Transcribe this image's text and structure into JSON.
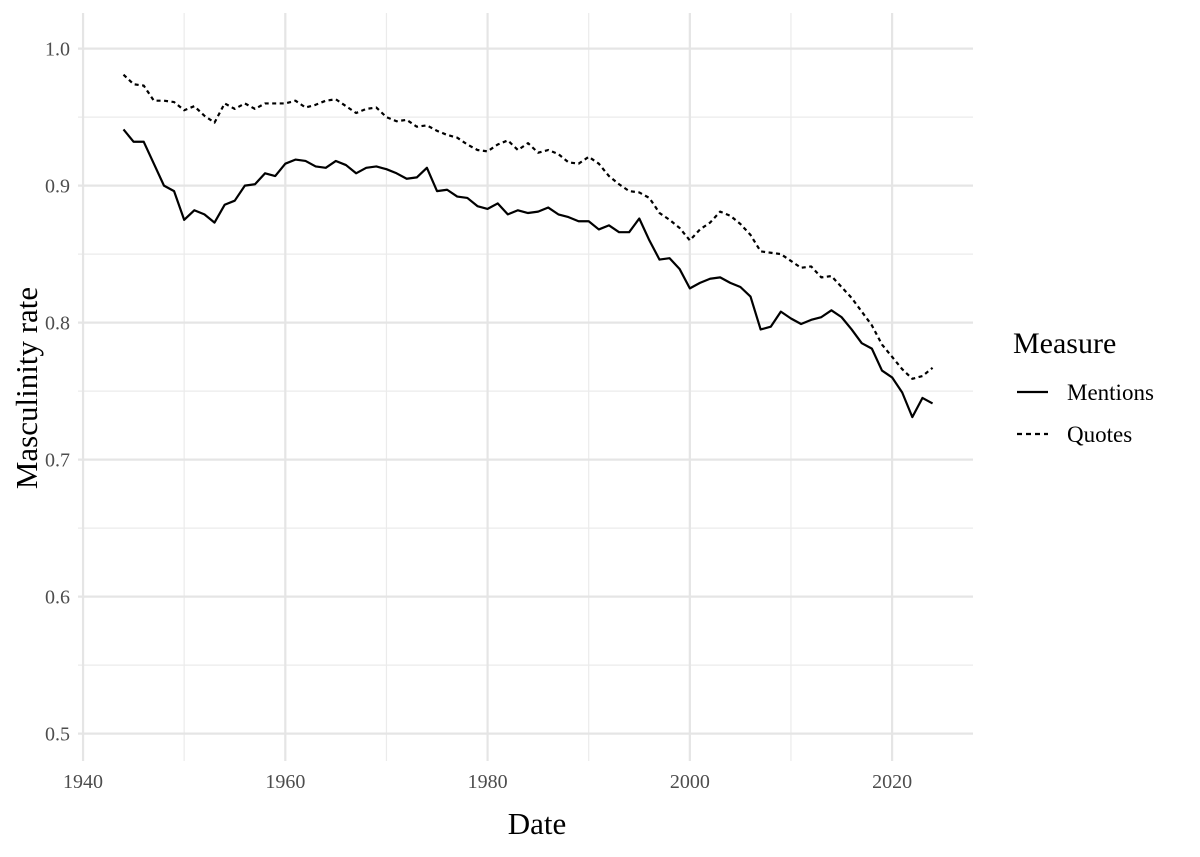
{
  "chart_data": {
    "type": "line",
    "xlabel": "Date",
    "ylabel": "Masculinity rate",
    "xlim": [
      1939.5,
      2028
    ],
    "ylim": [
      0.48,
      1.026
    ],
    "x_ticks": [
      1940,
      1960,
      1980,
      2000,
      2020
    ],
    "y_ticks": [
      0.5,
      0.6,
      0.7,
      0.8,
      0.9,
      1.0
    ],
    "x_tick_labels": [
      "1940",
      "1960",
      "1980",
      "2000",
      "2020"
    ],
    "y_tick_labels": [
      "0.5",
      "0.6",
      "0.7",
      "0.8",
      "0.9",
      "1.0"
    ],
    "grid": true,
    "legend": {
      "title": "Measure",
      "position": "right"
    },
    "x": [
      1944,
      1945,
      1946,
      1947,
      1948,
      1949,
      1950,
      1951,
      1952,
      1953,
      1954,
      1955,
      1956,
      1957,
      1958,
      1959,
      1960,
      1961,
      1962,
      1963,
      1964,
      1965,
      1966,
      1967,
      1968,
      1969,
      1970,
      1971,
      1972,
      1973,
      1974,
      1975,
      1976,
      1977,
      1978,
      1979,
      1980,
      1981,
      1982,
      1983,
      1984,
      1985,
      1986,
      1987,
      1988,
      1989,
      1990,
      1991,
      1992,
      1993,
      1994,
      1995,
      1996,
      1997,
      1998,
      1999,
      2000,
      2001,
      2002,
      2003,
      2004,
      2005,
      2006,
      2007,
      2008,
      2009,
      2010,
      2011,
      2012,
      2013,
      2014,
      2015,
      2016,
      2017,
      2018,
      2019,
      2020,
      2021,
      2022,
      2023,
      2024
    ],
    "series": [
      {
        "name": "Mentions",
        "linetype": "solid",
        "values": [
          0.941,
          0.932,
          0.932,
          0.916,
          0.9,
          0.896,
          0.875,
          0.882,
          0.879,
          0.873,
          0.886,
          0.889,
          0.9,
          0.901,
          0.909,
          0.907,
          0.916,
          0.919,
          0.918,
          0.914,
          0.913,
          0.918,
          0.915,
          0.909,
          0.913,
          0.914,
          0.912,
          0.909,
          0.905,
          0.906,
          0.913,
          0.896,
          0.897,
          0.892,
          0.891,
          0.885,
          0.883,
          0.887,
          0.879,
          0.882,
          0.88,
          0.881,
          0.884,
          0.879,
          0.877,
          0.874,
          0.874,
          0.868,
          0.871,
          0.866,
          0.866,
          0.876,
          0.86,
          0.846,
          0.847,
          0.839,
          0.825,
          0.829,
          0.832,
          0.833,
          0.829,
          0.826,
          0.819,
          0.795,
          0.797,
          0.808,
          0.803,
          0.799,
          0.802,
          0.804,
          0.809,
          0.804,
          0.795,
          0.785,
          0.781,
          0.765,
          0.76,
          0.749,
          0.731,
          0.745,
          0.741
        ]
      },
      {
        "name": "Quotes",
        "linetype": "dashed",
        "values": [
          0.981,
          0.974,
          0.973,
          0.962,
          0.962,
          0.961,
          0.955,
          0.958,
          0.951,
          0.946,
          0.96,
          0.956,
          0.96,
          0.956,
          0.96,
          0.96,
          0.96,
          0.962,
          0.957,
          0.959,
          0.962,
          0.963,
          0.958,
          0.953,
          0.956,
          0.957,
          0.95,
          0.947,
          0.948,
          0.943,
          0.944,
          0.94,
          0.937,
          0.935,
          0.93,
          0.926,
          0.925,
          0.93,
          0.933,
          0.926,
          0.931,
          0.924,
          0.926,
          0.923,
          0.917,
          0.916,
          0.921,
          0.916,
          0.907,
          0.901,
          0.896,
          0.895,
          0.891,
          0.88,
          0.875,
          0.869,
          0.86,
          0.868,
          0.873,
          0.881,
          0.878,
          0.872,
          0.864,
          0.852,
          0.851,
          0.85,
          0.845,
          0.84,
          0.841,
          0.833,
          0.834,
          0.826,
          0.818,
          0.808,
          0.798,
          0.784,
          0.775,
          0.766,
          0.759,
          0.761,
          0.767
        ]
      }
    ]
  }
}
